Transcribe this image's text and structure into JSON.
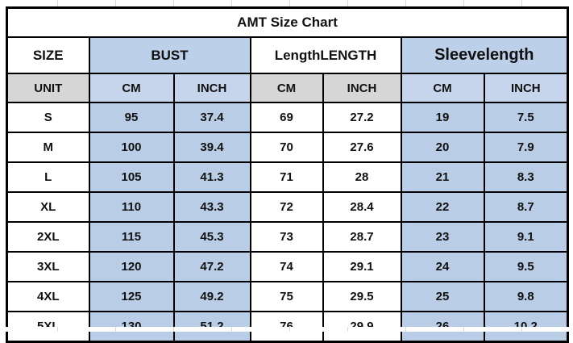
{
  "title": "AMT Size Chart",
  "colors": {
    "cell_blue": "#b9cde6",
    "unit_blue": "#c6d5ec",
    "unit_gray": "#d6d6d6",
    "border": "#000000",
    "text": "#111111",
    "background": "#ffffff"
  },
  "header": {
    "size_label": "SIZE",
    "groups": [
      {
        "label": "BUST"
      },
      {
        "label": "LengthLENGTH"
      },
      {
        "label": "Sleevelength"
      }
    ]
  },
  "unit_row": {
    "label": "UNIT",
    "units": [
      "CM",
      "INCH",
      "CM",
      "INCH",
      "CM",
      "INCH"
    ]
  },
  "rows": [
    {
      "size": "S",
      "values": [
        "95",
        "37.4",
        "69",
        "27.2",
        "19",
        "7.5"
      ]
    },
    {
      "size": "M",
      "values": [
        "100",
        "39.4",
        "70",
        "27.6",
        "20",
        "7.9"
      ]
    },
    {
      "size": "L",
      "values": [
        "105",
        "41.3",
        "71",
        "28",
        "21",
        "8.3"
      ]
    },
    {
      "size": "XL",
      "values": [
        "110",
        "43.3",
        "72",
        "28.4",
        "22",
        "8.7"
      ]
    },
    {
      "size": "2XL",
      "values": [
        "115",
        "45.3",
        "73",
        "28.7",
        "23",
        "9.1"
      ]
    },
    {
      "size": "3XL",
      "values": [
        "120",
        "47.2",
        "74",
        "29.1",
        "24",
        "9.5"
      ]
    },
    {
      "size": "4XL",
      "values": [
        "125",
        "49.2",
        "75",
        "29.5",
        "25",
        "9.8"
      ]
    },
    {
      "size": "5XL",
      "values": [
        "130",
        "51.2",
        "76",
        "29.9",
        "26",
        "10.2"
      ]
    }
  ],
  "chart_data": {
    "type": "table",
    "title": "AMT Size Chart",
    "columns": [
      "SIZE",
      "BUST CM",
      "BUST INCH",
      "LENGTH CM",
      "LENGTH INCH",
      "Sleevelength CM",
      "Sleevelength INCH"
    ],
    "rows": [
      [
        "S",
        95,
        37.4,
        69,
        27.2,
        19,
        7.5
      ],
      [
        "M",
        100,
        39.4,
        70,
        27.6,
        20,
        7.9
      ],
      [
        "L",
        105,
        41.3,
        71,
        28,
        21,
        8.3
      ],
      [
        "XL",
        110,
        43.3,
        72,
        28.4,
        22,
        8.7
      ],
      [
        "2XL",
        115,
        45.3,
        73,
        28.7,
        23,
        9.1
      ],
      [
        "3XL",
        120,
        47.2,
        74,
        29.1,
        24,
        9.5
      ],
      [
        "4XL",
        125,
        49.2,
        75,
        29.5,
        25,
        9.8
      ],
      [
        "5XL",
        130,
        51.2,
        76,
        29.9,
        26,
        10.2
      ]
    ]
  }
}
